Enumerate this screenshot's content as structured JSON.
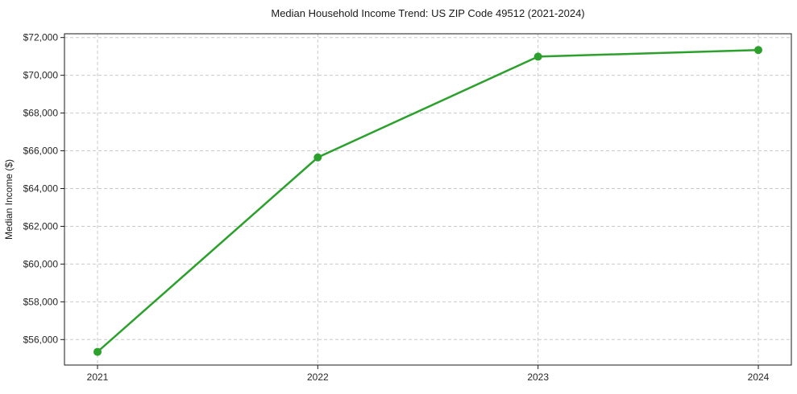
{
  "chart_data": {
    "type": "line",
    "title": "Median Household Income Trend: US ZIP Code 49512 (2021-2024)",
    "xlabel": "",
    "ylabel": "Median Income ($)",
    "series_name": "Median Household Income",
    "x": [
      2021,
      2022,
      2023,
      2024
    ],
    "x_tick_labels": [
      "2021",
      "2022",
      "2023",
      "2024"
    ],
    "values": [
      55350,
      65650,
      70990,
      71340
    ],
    "yticks": [
      56000,
      58000,
      60000,
      62000,
      64000,
      66000,
      68000,
      70000,
      72000
    ],
    "y_tick_labels": [
      "$56,000",
      "$58,000",
      "$60,000",
      "$62,000",
      "$64,000",
      "$66,000",
      "$68,000",
      "$70,000",
      "$72,000"
    ],
    "xlim": [
      2020.85,
      2024.15
    ],
    "ylim": [
      54650,
      72200
    ],
    "grid": true,
    "grid_style": "dashed",
    "legend": "none",
    "line_color": "#2ca02c",
    "marker": "circle",
    "marker_color": "#2ca02c",
    "grid_color": "#c9c9c9",
    "axis_color": "#1a1a1a",
    "tick_label_color": "#262626",
    "background_color": "#ffffff"
  }
}
